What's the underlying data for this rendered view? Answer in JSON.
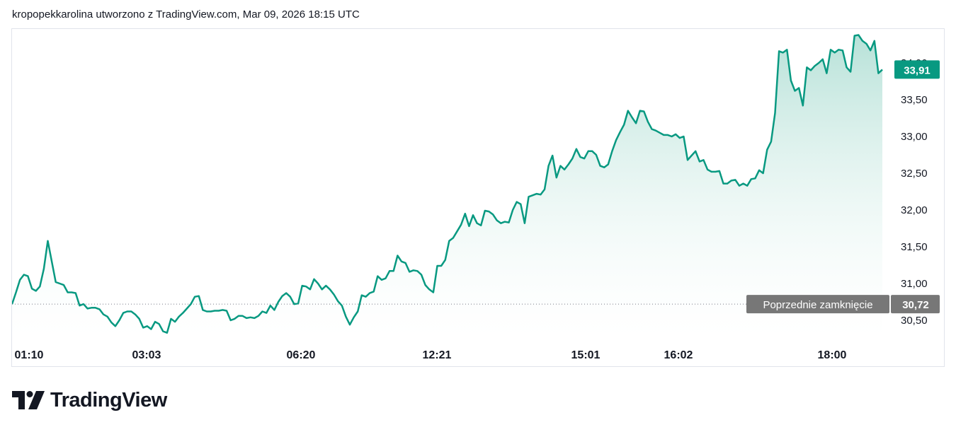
{
  "header": {
    "caption": "kropopekkarolina utworzono z TradingView.com, Mar 09, 2026 18:15 UTC"
  },
  "brand": {
    "name": "TradingView",
    "icon": "tradingview-logo-icon"
  },
  "colors": {
    "line": "#089981",
    "area_top": "#b3e0d6",
    "area_bottom": "#ffffff",
    "price_label_bg": "#089981",
    "prev_close_bg": "#777777",
    "text": "#131722"
  },
  "chart_data": {
    "type": "area",
    "title": "",
    "xlabel": "",
    "ylabel": "",
    "grid": false,
    "ylim": [
      30.3,
      34.5
    ],
    "x_ticks": [
      "01:10",
      "03:03",
      "06:20",
      "12:21",
      "15:01",
      "16:02",
      "18:00"
    ],
    "y_ticks": [
      "30,50",
      "31,00",
      "31,50",
      "32,00",
      "32,50",
      "33,00",
      "33,50",
      "34,00"
    ],
    "last_price": {
      "value": 33.91,
      "label": "33,91"
    },
    "previous_close": {
      "label": "Poprzednie zamknięcie",
      "value": 30.72,
      "value_label": "30,72"
    },
    "series": [
      {
        "values": [
          30.72,
          30.88,
          31.05,
          31.12,
          31.1,
          30.93,
          30.9,
          30.96,
          31.2,
          31.58,
          31.3,
          31.02,
          31.0,
          30.98,
          30.88,
          30.88,
          30.87,
          30.7,
          30.72,
          30.66,
          30.67,
          30.67,
          30.65,
          30.58,
          30.55,
          30.47,
          30.42,
          30.5,
          30.6,
          30.62,
          30.62,
          30.58,
          30.52,
          30.4,
          30.42,
          30.38,
          30.48,
          30.45,
          30.35,
          30.33,
          30.52,
          30.48,
          30.55,
          30.6,
          30.66,
          30.72,
          30.82,
          30.83,
          30.64,
          30.62,
          30.62,
          30.63,
          30.63,
          30.64,
          30.63,
          30.5,
          30.52,
          30.56,
          30.56,
          30.53,
          30.54,
          30.53,
          30.56,
          30.62,
          30.6,
          30.7,
          30.64,
          30.75,
          30.83,
          30.87,
          30.82,
          30.72,
          30.73,
          30.97,
          30.96,
          30.92,
          31.06,
          31.0,
          30.92,
          30.97,
          30.92,
          30.85,
          30.76,
          30.7,
          30.55,
          30.44,
          30.54,
          30.62,
          30.84,
          30.82,
          30.87,
          30.89,
          31.1,
          31.05,
          31.07,
          31.17,
          31.17,
          31.38,
          31.3,
          31.28,
          31.16,
          31.18,
          31.17,
          31.12,
          30.98,
          30.92,
          30.88,
          31.24,
          31.24,
          31.32,
          31.58,
          31.62,
          31.71,
          31.8,
          31.95,
          31.78,
          31.93,
          31.82,
          31.79,
          31.99,
          31.98,
          31.94,
          31.86,
          31.82,
          31.84,
          31.83,
          32.0,
          32.11,
          32.08,
          31.82,
          32.18,
          32.2,
          32.22,
          32.21,
          32.28,
          32.6,
          32.74,
          32.44,
          32.6,
          32.55,
          32.62,
          32.7,
          32.83,
          32.72,
          32.7,
          32.8,
          32.8,
          32.75,
          32.6,
          32.58,
          32.62,
          32.8,
          32.95,
          33.06,
          33.16,
          33.35,
          33.26,
          33.18,
          33.35,
          33.34,
          33.2,
          33.1,
          33.08,
          33.05,
          33.02,
          33.02,
          33.0,
          33.03,
          32.98,
          33.0,
          32.68,
          32.74,
          32.8,
          32.66,
          32.68,
          32.55,
          32.52,
          32.52,
          32.53,
          32.36,
          32.36,
          32.4,
          32.41,
          32.33,
          32.36,
          32.33,
          32.42,
          32.43,
          32.54,
          32.5,
          32.82,
          32.93,
          33.32,
          34.16,
          34.14,
          34.18,
          33.76,
          33.62,
          33.66,
          33.42,
          33.94,
          33.9,
          33.96,
          34.0,
          34.05,
          33.86,
          34.18,
          34.14,
          34.18,
          34.17,
          33.94,
          33.88,
          34.37,
          34.38,
          34.3,
          34.26,
          34.17,
          34.3,
          33.86,
          33.91
        ]
      }
    ]
  }
}
